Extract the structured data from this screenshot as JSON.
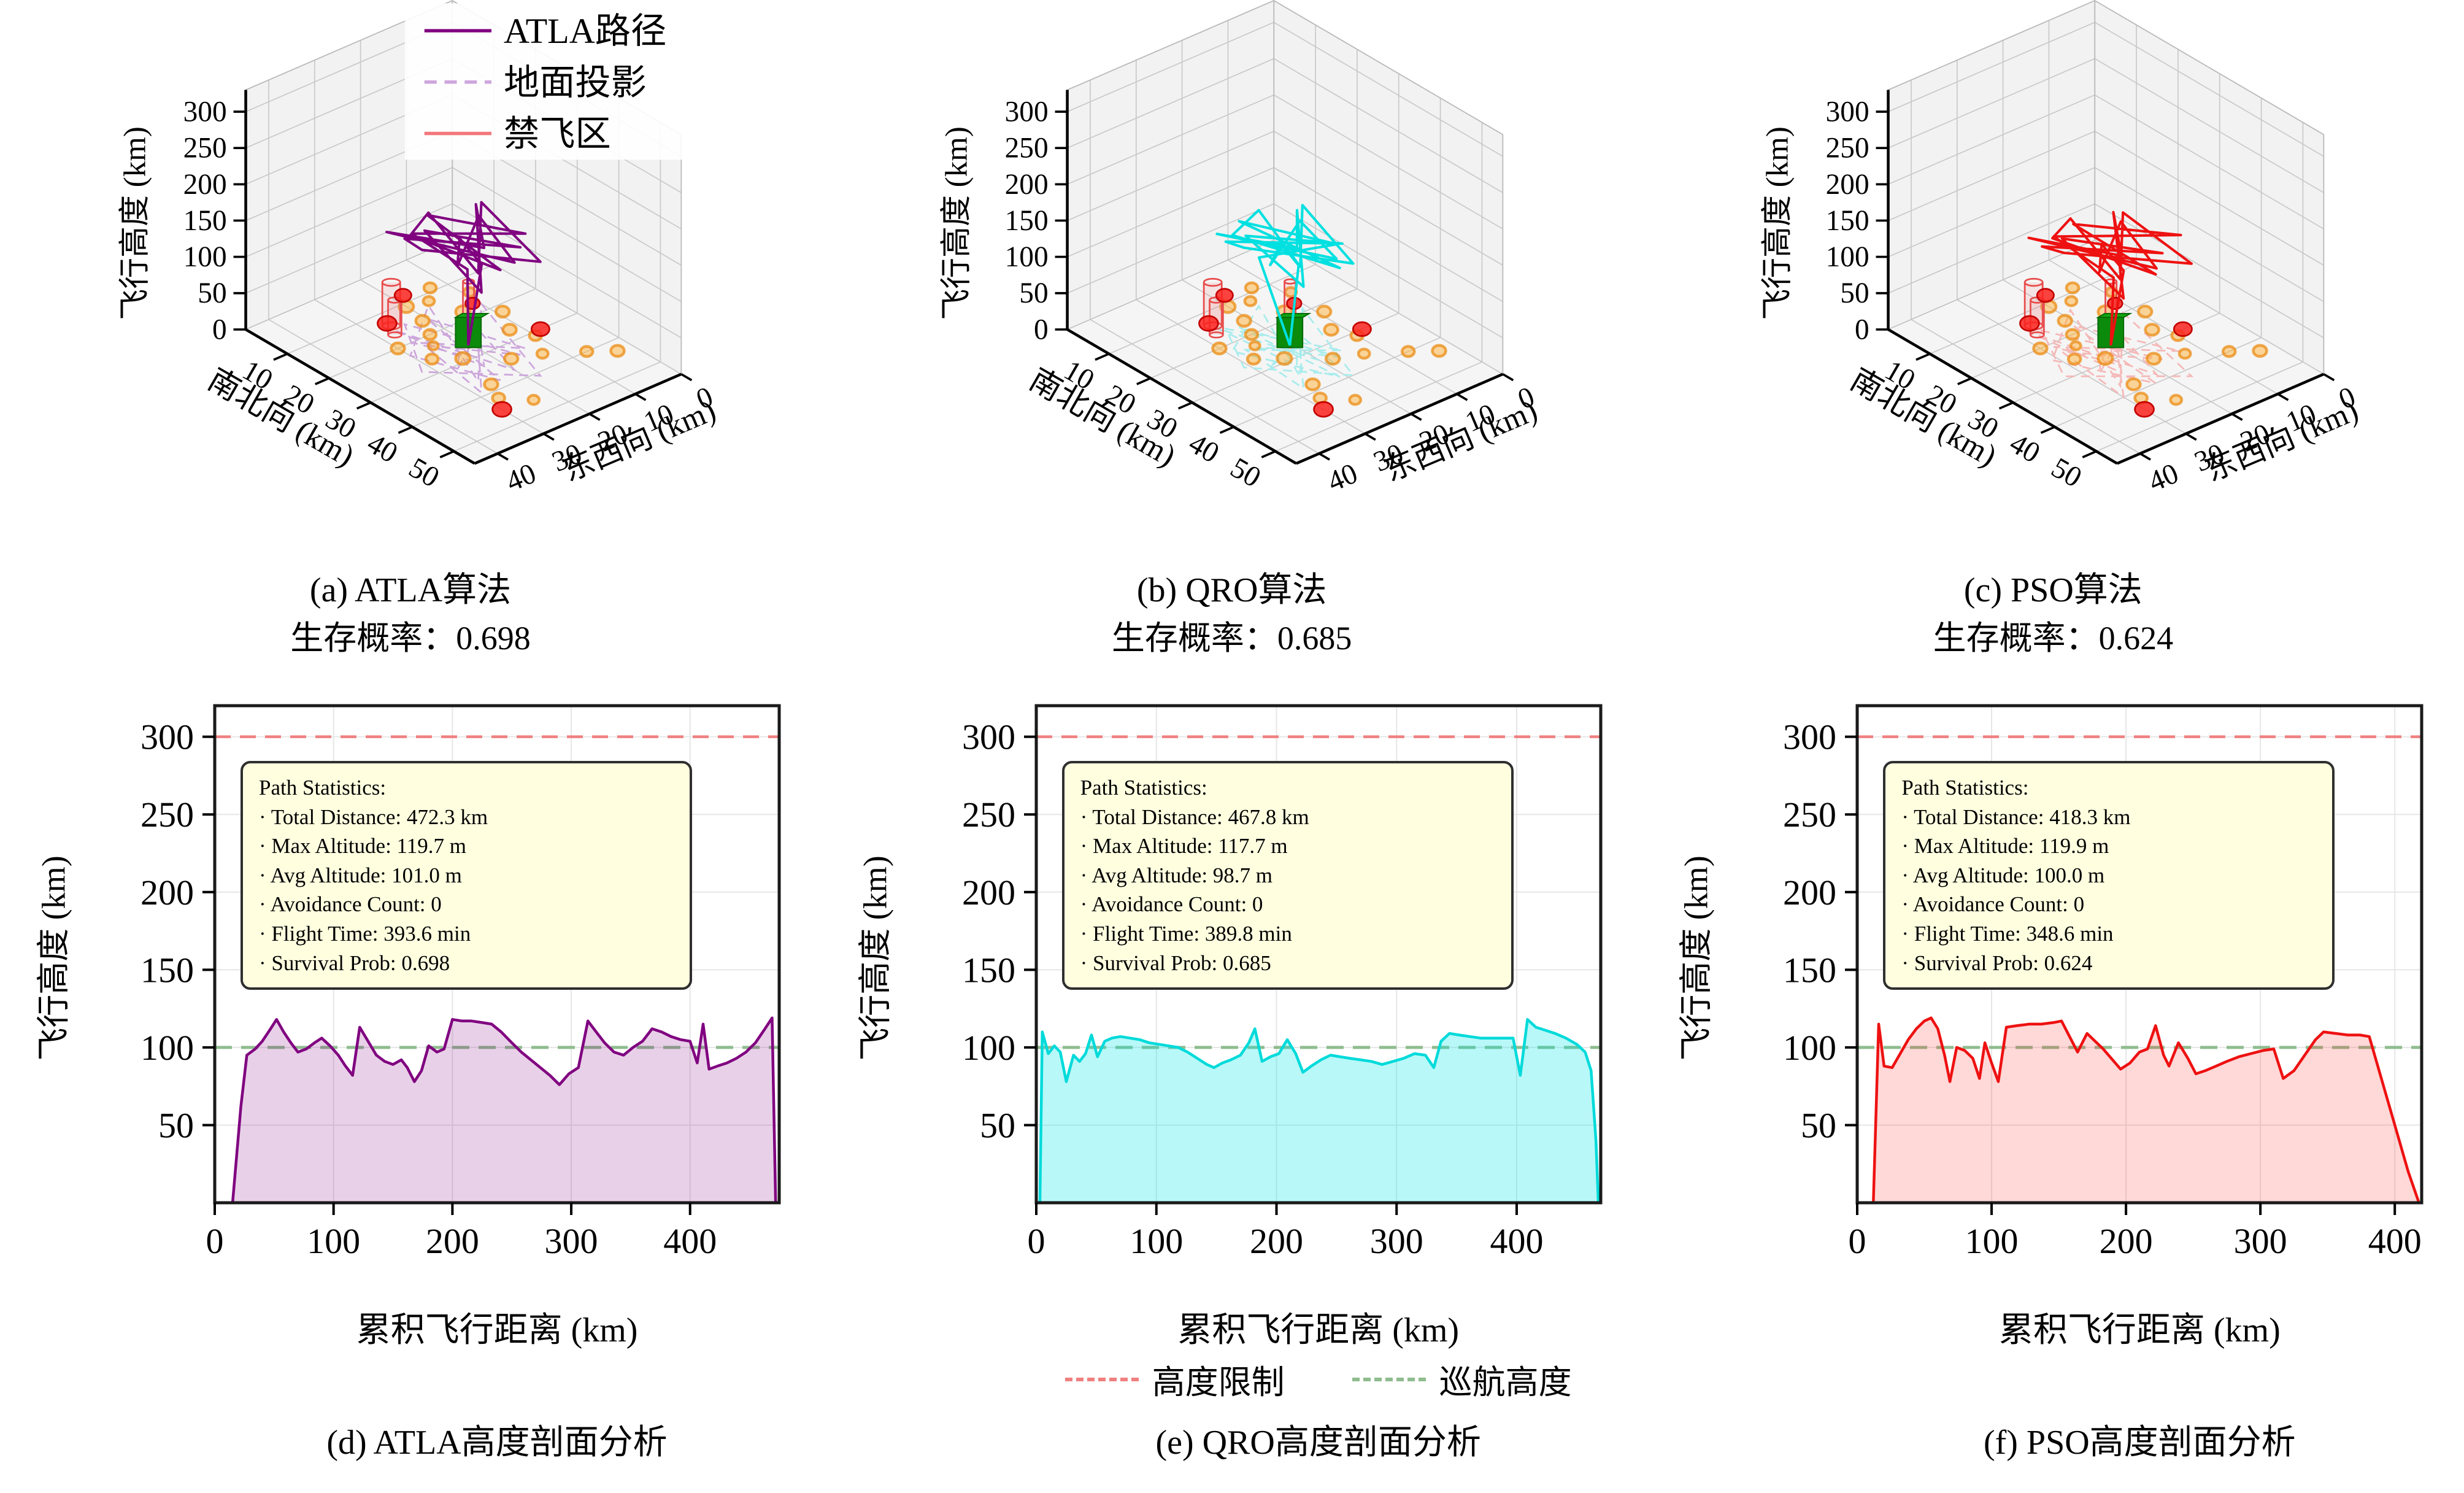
{
  "figure": {
    "background": "#FFFFFF"
  },
  "axes3d": {
    "zlabel": "飞行高度 (km)",
    "xlabel": "南北向 (km)",
    "ylabel": "东西向 (km)",
    "zticks": [
      0,
      50,
      100,
      150,
      200,
      250,
      300
    ],
    "xticks": [
      10,
      20,
      30,
      40,
      50
    ],
    "yticks": [
      0,
      10,
      20,
      30,
      40
    ]
  },
  "profile_axes": {
    "ylabel": "飞行高度 (km)",
    "xlabel": "累积飞行距离 (km)",
    "yticks": [
      50,
      100,
      150,
      200,
      250,
      300
    ],
    "ylim": [
      0,
      320
    ],
    "limit": {
      "y": 300,
      "color": "#F08080"
    },
    "cruise": {
      "y": 100,
      "color": "#8FBC8F"
    },
    "grid_color": "#E6E6E6"
  },
  "bottom_legend": [
    {
      "label": "高度限制",
      "color": "#F08080"
    },
    {
      "label": "巡航高度",
      "color": "#8FBC8F"
    }
  ],
  "scene3d": {
    "threat_stroke": "#EB8C14",
    "threat_fill": "rgba(255,170,40,0.45)",
    "obstacle_fill": "rgba(250,35,30,0.85)",
    "obstacle_stroke": "#C40000",
    "cylinder_stroke": "#E84C4C",
    "cylinder_fill": "rgba(240,128,128,0.15)",
    "target_fill": "#0B8A0B",
    "target_stroke": "#066606",
    "pane_fill": "#F2F2F2",
    "grid_color": "#C8C8C8",
    "edge_color": "#BBBBBB",
    "threats": [
      [
        9,
        13,
        11
      ],
      [
        11,
        20,
        13
      ],
      [
        14,
        9,
        10
      ],
      [
        16,
        21,
        12
      ],
      [
        18,
        14,
        13
      ],
      [
        20,
        23,
        11
      ],
      [
        22,
        9,
        12
      ],
      [
        24,
        17,
        10
      ],
      [
        27,
        12,
        12
      ],
      [
        29,
        24,
        13
      ],
      [
        31,
        10,
        11
      ],
      [
        34,
        18,
        12
      ],
      [
        26,
        28,
        11
      ],
      [
        20,
        30,
        12
      ],
      [
        38,
        26,
        12
      ],
      [
        42,
        28,
        11
      ],
      [
        40,
        7,
        11
      ],
      [
        43,
        3,
        12
      ],
      [
        12,
        16,
        10
      ],
      [
        23,
        25,
        9
      ],
      [
        36,
        13,
        10
      ],
      [
        46,
        24,
        10
      ]
    ],
    "obstacles": [
      [
        8,
        18,
        15
      ],
      [
        13,
        26,
        17
      ],
      [
        30,
        8,
        16
      ],
      [
        45,
        30,
        17
      ],
      [
        17,
        11,
        13
      ]
    ],
    "cylinders": [
      [
        14,
        26,
        60,
        16
      ],
      [
        16.5,
        27.5,
        48,
        12
      ],
      [
        26.5,
        20.5,
        88,
        10
      ]
    ],
    "target": [
      27,
      21
    ]
  },
  "chart_data": [
    {
      "id": "a",
      "type": "line3d",
      "caption": "(a) ATLA算法",
      "survival": "生存概率：0.698",
      "path_color": "#800080",
      "proj_color": "#CDA6DC",
      "legend": [
        {
          "label": "ATLA路径",
          "color": "#800080",
          "dash": false
        },
        {
          "label": "地面投影",
          "color": "#CDA6DC",
          "dash": true
        },
        {
          "label": "禁飞区",
          "color": "#F4777C",
          "dash": false
        }
      ],
      "path3d": [
        [
          27,
          21,
          3
        ],
        [
          29,
          23,
          120
        ],
        [
          20,
          27,
          150
        ],
        [
          33,
          14,
          158
        ],
        [
          16,
          20,
          143
        ],
        [
          38,
          24,
          152
        ],
        [
          23,
          30,
          166
        ],
        [
          13,
          17,
          128
        ],
        [
          36,
          27,
          149
        ],
        [
          18,
          10,
          140
        ],
        [
          41,
          18,
          157
        ],
        [
          28,
          32,
          168
        ],
        [
          15,
          24,
          118
        ],
        [
          34,
          16,
          148
        ],
        [
          22,
          26,
          158
        ],
        [
          39,
          29,
          138
        ],
        [
          20,
          13,
          152
        ],
        [
          33,
          23,
          163
        ],
        [
          14,
          27,
          132
        ],
        [
          37,
          20,
          148
        ],
        [
          24,
          16,
          158
        ],
        [
          31,
          27,
          142
        ],
        [
          26,
          22,
          150
        ],
        [
          28,
          19,
          112
        ],
        [
          27,
          21,
          3
        ]
      ]
    },
    {
      "id": "b",
      "type": "line3d",
      "caption": "(b) QRO算法",
      "survival": "生存概率：0.685",
      "path_color": "#00E0E0",
      "proj_color": "#A8ECEC",
      "legend": null,
      "path3d": [
        [
          27,
          21,
          3
        ],
        [
          24,
          25,
          125
        ],
        [
          34,
          17,
          155
        ],
        [
          17,
          23,
          146
        ],
        [
          39,
          21,
          150
        ],
        [
          22,
          29,
          160
        ],
        [
          14,
          16,
          132
        ],
        [
          35,
          26,
          152
        ],
        [
          19,
          11,
          142
        ],
        [
          40,
          19,
          154
        ],
        [
          27,
          31,
          165
        ],
        [
          16,
          25,
          120
        ],
        [
          33,
          15,
          147
        ],
        [
          23,
          27,
          157
        ],
        [
          38,
          28,
          140
        ],
        [
          21,
          14,
          150
        ],
        [
          32,
          24,
          162
        ],
        [
          15,
          26,
          130
        ],
        [
          36,
          19,
          147
        ],
        [
          25,
          17,
          157
        ],
        [
          30,
          28,
          143
        ],
        [
          27,
          23,
          149
        ],
        [
          28,
          20,
          114
        ],
        [
          27,
          21,
          3
        ]
      ]
    },
    {
      "id": "c",
      "type": "line3d",
      "caption": "(c) PSO算法",
      "survival": "生存概率：0.624",
      "path_color": "#EE1111",
      "proj_color": "#F5B8B8",
      "legend": null,
      "path3d": [
        [
          27,
          21,
          3
        ],
        [
          31,
          24,
          118
        ],
        [
          21,
          28,
          152
        ],
        [
          35,
          13,
          160
        ],
        [
          18,
          21,
          140
        ],
        [
          40,
          23,
          150
        ],
        [
          24,
          31,
          168
        ],
        [
          14,
          18,
          126
        ],
        [
          37,
          28,
          147
        ],
        [
          20,
          12,
          138
        ],
        [
          42,
          17,
          155
        ],
        [
          29,
          33,
          170
        ],
        [
          16,
          26,
          116
        ],
        [
          35,
          17,
          146
        ],
        [
          23,
          28,
          156
        ],
        [
          40,
          30,
          136
        ],
        [
          21,
          15,
          150
        ],
        [
          34,
          25,
          161
        ],
        [
          15,
          28,
          130
        ],
        [
          38,
          21,
          146
        ],
        [
          25,
          17,
          156
        ],
        [
          32,
          28,
          140
        ],
        [
          27,
          23,
          148
        ],
        [
          29,
          20,
          110
        ],
        [
          27,
          21,
          3
        ]
      ]
    },
    {
      "id": "d",
      "type": "area",
      "caption": "(d) ATLA高度剖面分析",
      "color": "#800080",
      "fill": "rgba(128,0,128,0.18)",
      "x_max": 475,
      "xticks": [
        0,
        100,
        200,
        300,
        400
      ],
      "stats": [
        "Path Statistics:",
        "· Total Distance: 472.3 km",
        "· Max Altitude: 119.7 m",
        "· Avg Altitude: 101.0 m",
        "· Avoidance Count: 0",
        "· Flight Time: 393.6 min",
        "· Survival Prob: 0.698"
      ],
      "points": [
        [
          15,
          0
        ],
        [
          22,
          62
        ],
        [
          27,
          95
        ],
        [
          34,
          99
        ],
        [
          40,
          104
        ],
        [
          47,
          112
        ],
        [
          52,
          118
        ],
        [
          58,
          110
        ],
        [
          64,
          103
        ],
        [
          70,
          97
        ],
        [
          77,
          99
        ],
        [
          84,
          103
        ],
        [
          90,
          106
        ],
        [
          97,
          101
        ],
        [
          104,
          95
        ],
        [
          110,
          88
        ],
        [
          116,
          82
        ],
        [
          122,
          113
        ],
        [
          129,
          104
        ],
        [
          136,
          95
        ],
        [
          143,
          91
        ],
        [
          150,
          89
        ],
        [
          157,
          92
        ],
        [
          162,
          87
        ],
        [
          168,
          78
        ],
        [
          174,
          85
        ],
        [
          180,
          101
        ],
        [
          187,
          97
        ],
        [
          193,
          99
        ],
        [
          200,
          118
        ],
        [
          208,
          117
        ],
        [
          216,
          117
        ],
        [
          225,
          116
        ],
        [
          233,
          115
        ],
        [
          241,
          110
        ],
        [
          250,
          103
        ],
        [
          258,
          97
        ],
        [
          266,
          92
        ],
        [
          274,
          87
        ],
        [
          282,
          82
        ],
        [
          290,
          76
        ],
        [
          298,
          83
        ],
        [
          306,
          87
        ],
        [
          314,
          117
        ],
        [
          321,
          110
        ],
        [
          328,
          103
        ],
        [
          336,
          97
        ],
        [
          344,
          95
        ],
        [
          352,
          100
        ],
        [
          360,
          104
        ],
        [
          368,
          112
        ],
        [
          376,
          110
        ],
        [
          384,
          107
        ],
        [
          392,
          105
        ],
        [
          400,
          104
        ],
        [
          406,
          90
        ],
        [
          411,
          115
        ],
        [
          416,
          86
        ],
        [
          423,
          88
        ],
        [
          431,
          90
        ],
        [
          439,
          93
        ],
        [
          447,
          97
        ],
        [
          455,
          103
        ],
        [
          463,
          112
        ],
        [
          469,
          119
        ],
        [
          472,
          0
        ]
      ]
    },
    {
      "id": "e",
      "type": "area",
      "caption": "(e) QRO高度剖面分析",
      "color": "#00DADA",
      "fill": "rgba(0,229,229,0.28)",
      "x_max": 470,
      "xticks": [
        0,
        100,
        200,
        300,
        400
      ],
      "stats": [
        "Path Statistics:",
        "· Total Distance: 467.8 km",
        "· Max Altitude: 117.7 m",
        "· Avg Altitude: 98.7 m",
        "· Avoidance Count: 0",
        "· Flight Time: 389.8 min",
        "· Survival Prob: 0.685"
      ],
      "points": [
        [
          3,
          0
        ],
        [
          5,
          110
        ],
        [
          10,
          96
        ],
        [
          15,
          101
        ],
        [
          20,
          97
        ],
        [
          25,
          78
        ],
        [
          31,
          95
        ],
        [
          36,
          91
        ],
        [
          41,
          96
        ],
        [
          46,
          108
        ],
        [
          51,
          94
        ],
        [
          57,
          104
        ],
        [
          63,
          106
        ],
        [
          70,
          107
        ],
        [
          78,
          106
        ],
        [
          86,
          105
        ],
        [
          94,
          103
        ],
        [
          102,
          102
        ],
        [
          110,
          101
        ],
        [
          118,
          100
        ],
        [
          126,
          97
        ],
        [
          134,
          93
        ],
        [
          142,
          89
        ],
        [
          148,
          87
        ],
        [
          155,
          90
        ],
        [
          162,
          92
        ],
        [
          170,
          95
        ],
        [
          177,
          103
        ],
        [
          182,
          112
        ],
        [
          188,
          91
        ],
        [
          195,
          94
        ],
        [
          202,
          96
        ],
        [
          209,
          105
        ],
        [
          216,
          96
        ],
        [
          222,
          84
        ],
        [
          229,
          88
        ],
        [
          237,
          92
        ],
        [
          245,
          95
        ],
        [
          253,
          94
        ],
        [
          261,
          93
        ],
        [
          270,
          92
        ],
        [
          279,
          91
        ],
        [
          288,
          89
        ],
        [
          297,
          91
        ],
        [
          306,
          93
        ],
        [
          315,
          96
        ],
        [
          324,
          95
        ],
        [
          331,
          87
        ],
        [
          337,
          104
        ],
        [
          344,
          109
        ],
        [
          352,
          108
        ],
        [
          361,
          107
        ],
        [
          370,
          106
        ],
        [
          379,
          106
        ],
        [
          388,
          106
        ],
        [
          397,
          106
        ],
        [
          403,
          82
        ],
        [
          409,
          118
        ],
        [
          416,
          113
        ],
        [
          424,
          111
        ],
        [
          432,
          109
        ],
        [
          441,
          106
        ],
        [
          450,
          102
        ],
        [
          457,
          97
        ],
        [
          462,
          85
        ],
        [
          466,
          40
        ],
        [
          468,
          0
        ]
      ]
    },
    {
      "id": "f",
      "type": "area",
      "caption": "(f) PSO高度剖面分析",
      "color": "#EE1111",
      "fill": "rgba(255,40,40,0.18)",
      "x_max": 420,
      "xticks": [
        0,
        100,
        200,
        300,
        400
      ],
      "stats": [
        "Path Statistics:",
        "· Total Distance: 418.3 km",
        "· Max Altitude: 119.9 m",
        "· Avg Altitude: 100.0 m",
        "· Avoidance Count: 0",
        "· Flight Time: 348.6 min",
        "· Survival Prob: 0.624"
      ],
      "points": [
        [
          12,
          0
        ],
        [
          16,
          115
        ],
        [
          20,
          88
        ],
        [
          26,
          87
        ],
        [
          32,
          96
        ],
        [
          38,
          105
        ],
        [
          44,
          112
        ],
        [
          50,
          117
        ],
        [
          55,
          119
        ],
        [
          60,
          112
        ],
        [
          65,
          95
        ],
        [
          69,
          78
        ],
        [
          74,
          100
        ],
        [
          80,
          98
        ],
        [
          86,
          93
        ],
        [
          91,
          80
        ],
        [
          95,
          103
        ],
        [
          100,
          90
        ],
        [
          105,
          78
        ],
        [
          111,
          113
        ],
        [
          119,
          114
        ],
        [
          128,
          115
        ],
        [
          137,
          115
        ],
        [
          146,
          116
        ],
        [
          152,
          117
        ],
        [
          158,
          107
        ],
        [
          164,
          97
        ],
        [
          171,
          109
        ],
        [
          177,
          104
        ],
        [
          183,
          99
        ],
        [
          190,
          92
        ],
        [
          196,
          86
        ],
        [
          203,
          90
        ],
        [
          210,
          97
        ],
        [
          216,
          99
        ],
        [
          222,
          114
        ],
        [
          228,
          95
        ],
        [
          232,
          88
        ],
        [
          239,
          103
        ],
        [
          246,
          93
        ],
        [
          252,
          83
        ],
        [
          259,
          85
        ],
        [
          267,
          88
        ],
        [
          275,
          91
        ],
        [
          284,
          94
        ],
        [
          293,
          96
        ],
        [
          302,
          98
        ],
        [
          310,
          99
        ],
        [
          317,
          80
        ],
        [
          325,
          85
        ],
        [
          333,
          95
        ],
        [
          341,
          105
        ],
        [
          347,
          110
        ],
        [
          356,
          109
        ],
        [
          365,
          108
        ],
        [
          374,
          108
        ],
        [
          381,
          107
        ],
        [
          390,
          80
        ],
        [
          400,
          50
        ],
        [
          410,
          20
        ],
        [
          418,
          0
        ]
      ]
    }
  ]
}
